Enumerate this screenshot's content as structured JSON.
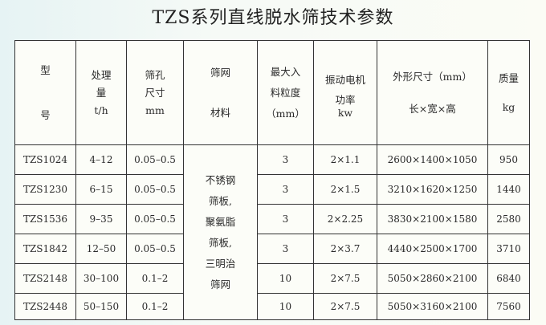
{
  "title": "TZS系列直线脱水筛技术参数",
  "headers": {
    "model": [
      "型",
      "号"
    ],
    "capacity": [
      "处理",
      "量",
      "t/h"
    ],
    "aperture": [
      "筛孔",
      "尺寸",
      "mm"
    ],
    "material": [
      "筛网",
      "材料"
    ],
    "feed_size": [
      "最大入",
      "料粒度",
      "（mm）"
    ],
    "motor": [
      "振动电机",
      "功率",
      "kw"
    ],
    "dimensions": [
      "外形尺寸（mm）",
      "长×宽×高"
    ],
    "weight": [
      "质量",
      "kg"
    ]
  },
  "material_text": [
    "不锈钢",
    "筛板,",
    "聚氨脂",
    "筛板,",
    "三明治",
    "筛网"
  ],
  "rows": [
    {
      "model": "TZS1024",
      "capacity": "4–12",
      "aperture": "0.05–0.5",
      "feed": "3",
      "power": "2×1.1",
      "dims": "2600×1400×1050",
      "weight": "950"
    },
    {
      "model": "TZS1230",
      "capacity": "6–15",
      "aperture": "0.05–0.5",
      "feed": "3",
      "power": "2×1.5",
      "dims": "3210×1620×1250",
      "weight": "1440"
    },
    {
      "model": "TZS1536",
      "capacity": "9–35",
      "aperture": "0.05–0.5",
      "feed": "3",
      "power": "2×2.25",
      "dims": "3830×2100×1580",
      "weight": "2580"
    },
    {
      "model": "TZS1842",
      "capacity": "12–50",
      "aperture": "0.05–0.5",
      "feed": "3",
      "power": "2×3.7",
      "dims": "4440×2500×1700",
      "weight": "3710"
    },
    {
      "model": "TZS2148",
      "capacity": "30–100",
      "aperture": "0.1–2",
      "feed": "10",
      "power": "2×7.5",
      "dims": "5050×2860×2100",
      "weight": "6840"
    },
    {
      "model": "TZS2448",
      "capacity": "50–150",
      "aperture": "0.1–2",
      "feed": "10",
      "power": "2×7.5",
      "dims": "5050×3160×2100",
      "weight": "7560"
    }
  ]
}
